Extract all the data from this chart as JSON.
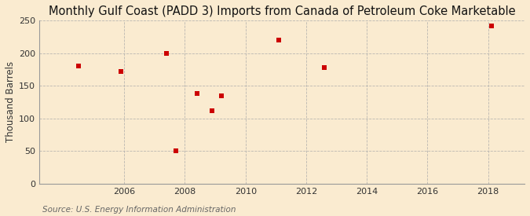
{
  "title": "Monthly Gulf Coast (PADD 3) Imports from Canada of Petroleum Coke Marketable",
  "ylabel": "Thousand Barrels",
  "source": "Source: U.S. Energy Information Administration",
  "background_color": "#faebd0",
  "plot_bg_color": "#faebd0",
  "marker_color": "#cc0000",
  "grid_color": "#aaaaaa",
  "x_data": [
    2004.5,
    2005.9,
    2007.4,
    2007.7,
    2008.4,
    2008.9,
    2009.2,
    2011.1,
    2012.6,
    2018.1
  ],
  "y_data": [
    180,
    172,
    200,
    50,
    138,
    112,
    135,
    220,
    178,
    242
  ],
  "xlim": [
    2003.2,
    2019.2
  ],
  "ylim": [
    0,
    250
  ],
  "xticks": [
    2006,
    2008,
    2010,
    2012,
    2014,
    2016,
    2018
  ],
  "yticks": [
    0,
    50,
    100,
    150,
    200,
    250
  ],
  "title_fontsize": 10.5,
  "label_fontsize": 8.5,
  "tick_fontsize": 8,
  "source_fontsize": 7.5,
  "marker_size": 4
}
